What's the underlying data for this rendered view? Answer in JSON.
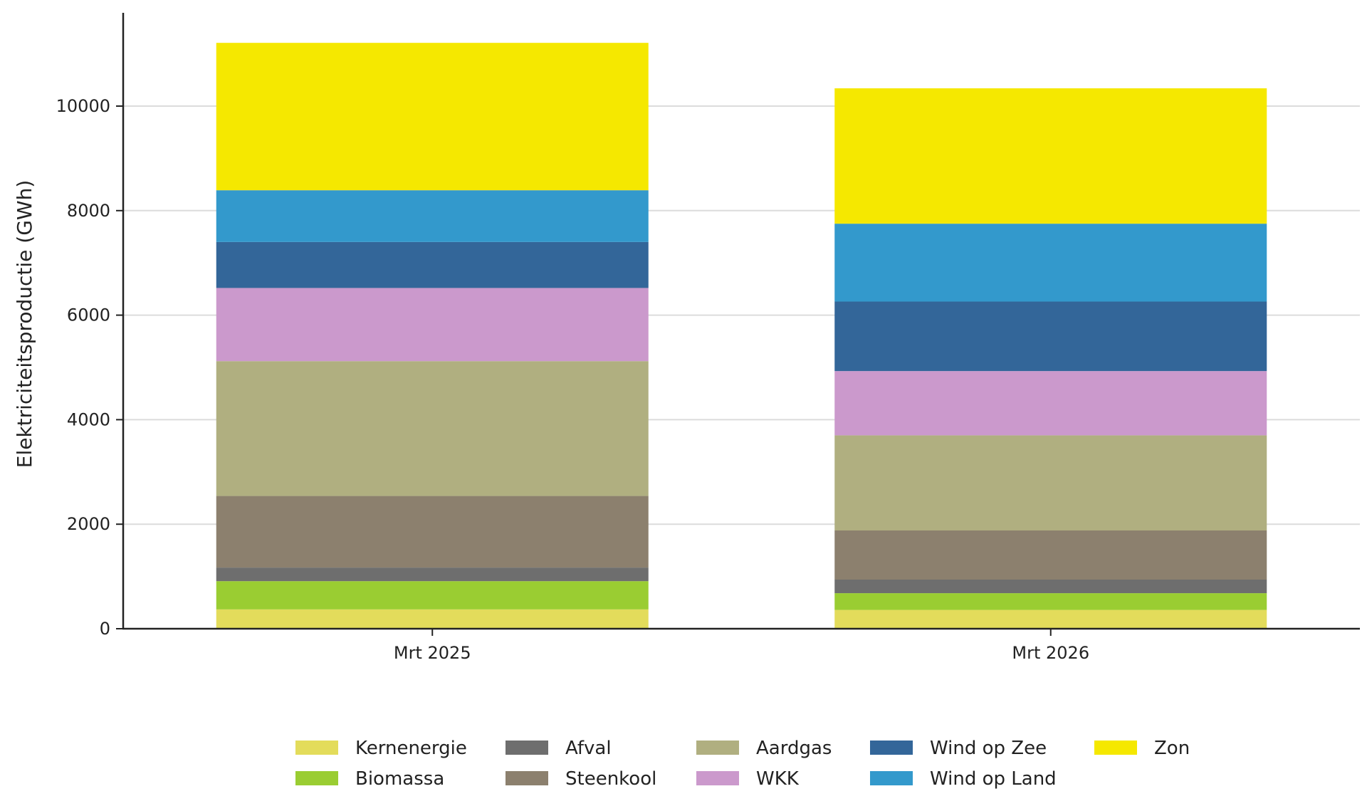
{
  "chart_data": {
    "type": "bar",
    "stacked": true,
    "title": "",
    "xlabel": "",
    "ylabel": "Elektriciteitsproductie (GWh)",
    "categories": [
      "Mrt 2025",
      "Mrt 2026"
    ],
    "ylim": [
      0,
      11800
    ],
    "yticks": [
      0,
      2000,
      4000,
      6000,
      8000,
      10000
    ],
    "ytick_labels": [
      "0",
      "2000",
      "4000",
      "6000",
      "8000",
      "10000"
    ],
    "grid": "horizontal",
    "legend_position": "bottom",
    "series": [
      {
        "name": "Kernenergie",
        "color": "#e3dc5b",
        "values": [
          370,
          360
        ]
      },
      {
        "name": "Biomassa",
        "color": "#9acd32",
        "values": [
          540,
          320
        ]
      },
      {
        "name": "Afval",
        "color": "#6e6e6e",
        "values": [
          260,
          260
        ]
      },
      {
        "name": "Steenkool",
        "color": "#8c806e",
        "values": [
          1370,
          940
        ]
      },
      {
        "name": "Aardgas",
        "color": "#b0af80",
        "values": [
          2580,
          1820
        ]
      },
      {
        "name": "WKK",
        "color": "#cb99cc",
        "values": [
          1400,
          1230
        ]
      },
      {
        "name": "Wind op Zee",
        "color": "#336699",
        "values": [
          880,
          1330
        ]
      },
      {
        "name": "Wind op Land",
        "color": "#3399cc",
        "values": [
          990,
          1490
        ]
      },
      {
        "name": "Zon",
        "color": "#f5e800",
        "values": [
          2820,
          2590
        ]
      }
    ]
  }
}
